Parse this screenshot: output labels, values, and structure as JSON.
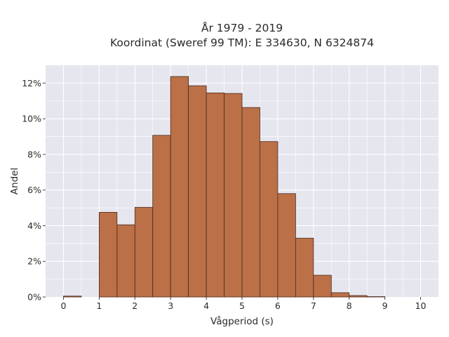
{
  "chart_data": {
    "type": "bar",
    "title_lines": [
      "År 1979 - 2019",
      "Koordinat (Sweref 99 TM): E 334630, N 6324874"
    ],
    "xlabel": "Vågperiod (s)",
    "ylabel": "Andel",
    "xlim": [
      -0.5,
      10.5
    ],
    "ylim": [
      0,
      13
    ],
    "x_ticks": [
      0,
      1,
      2,
      3,
      4,
      5,
      6,
      7,
      8,
      9,
      10
    ],
    "x_tick_labels": [
      "0",
      "1",
      "2",
      "3",
      "4",
      "5",
      "6",
      "7",
      "8",
      "9",
      "10"
    ],
    "y_ticks": [
      0,
      2,
      4,
      6,
      8,
      10,
      12
    ],
    "y_tick_labels": [
      "0%",
      "2%",
      "4%",
      "6%",
      "8%",
      "10%",
      "12%"
    ],
    "bin_width": 0.5,
    "bins": [
      {
        "start": 0.0,
        "value": 0.05
      },
      {
        "start": 0.5,
        "value": 0.0
      },
      {
        "start": 1.0,
        "value": 4.75
      },
      {
        "start": 1.5,
        "value": 4.05
      },
      {
        "start": 2.0,
        "value": 5.03
      },
      {
        "start": 2.5,
        "value": 9.07
      },
      {
        "start": 3.0,
        "value": 12.37
      },
      {
        "start": 3.5,
        "value": 11.85
      },
      {
        "start": 4.0,
        "value": 11.45
      },
      {
        "start": 4.5,
        "value": 11.42
      },
      {
        "start": 5.0,
        "value": 10.63
      },
      {
        "start": 5.5,
        "value": 8.72
      },
      {
        "start": 6.0,
        "value": 5.8
      },
      {
        "start": 6.5,
        "value": 3.3
      },
      {
        "start": 7.0,
        "value": 1.22
      },
      {
        "start": 7.5,
        "value": 0.24
      },
      {
        "start": 8.0,
        "value": 0.08
      },
      {
        "start": 8.5,
        "value": 0.02
      },
      {
        "start": 9.0,
        "value": 0.0
      },
      {
        "start": 9.5,
        "value": 0.0
      }
    ],
    "grid": true,
    "bar_color": "#bb7048",
    "bar_edge_color": "#4a2a1c",
    "plot_background": "#e6e6ef"
  }
}
